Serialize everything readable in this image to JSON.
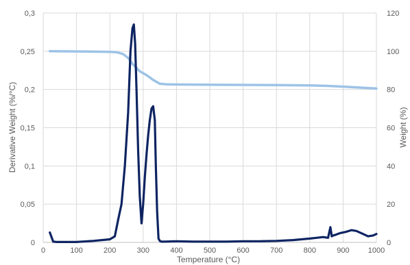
{
  "chart_data": {
    "type": "line",
    "title": "",
    "xlabel": "Temperature (°C)",
    "ylabel_left": "Derivative  Weight (%/°C)",
    "ylabel_right": "Weight  (%)",
    "xlim": [
      0,
      1000
    ],
    "ylim_left": [
      0,
      0.3
    ],
    "ylim_right": [
      0,
      120
    ],
    "grid": true,
    "legend": "none",
    "x_ticks": [
      0,
      100,
      200,
      300,
      400,
      500,
      600,
      700,
      800,
      900,
      1000
    ],
    "y_left_ticks": [
      "0",
      "0,05",
      "0,1",
      "0,15",
      "0,2",
      "0,25",
      "0,3"
    ],
    "y_left_tick_values": [
      0,
      0.05,
      0.1,
      0.15,
      0.2,
      0.25,
      0.3
    ],
    "y_right_ticks": [
      0,
      20,
      40,
      60,
      80,
      100,
      120
    ],
    "series": [
      {
        "axis": "right",
        "color": "#9DC3E6",
        "x": [
          20,
          100,
          200,
          220,
          240,
          255,
          270,
          290,
          310,
          330,
          350,
          370,
          400,
          500,
          600,
          700,
          800,
          850,
          900,
          950,
          1000
        ],
        "y": [
          100,
          99.9,
          99.7,
          99.5,
          98.5,
          96.5,
          93,
          89.5,
          87.5,
          85,
          83,
          82.7,
          82.6,
          82.5,
          82.4,
          82.3,
          82.1,
          81.9,
          81.5,
          81,
          80.5
        ]
      },
      {
        "axis": "left",
        "color": "#0E2462",
        "x": [
          20,
          30,
          40,
          60,
          100,
          150,
          200,
          215,
          225,
          235,
          245,
          255,
          262,
          268,
          272,
          276,
          280,
          285,
          290,
          295,
          300,
          305,
          310,
          315,
          320,
          325,
          330,
          335,
          338,
          342,
          346,
          350,
          355,
          365,
          400,
          450,
          500,
          550,
          600,
          650,
          700,
          750,
          800,
          820,
          840,
          855,
          862,
          866,
          870,
          878,
          890,
          910,
          925,
          940,
          955,
          965,
          975,
          990,
          1000
        ],
        "y": [
          0.013,
          0.001,
          0.0005,
          0.0005,
          0.0005,
          0.002,
          0.004,
          0.008,
          0.03,
          0.05,
          0.1,
          0.17,
          0.25,
          0.28,
          0.285,
          0.26,
          0.2,
          0.12,
          0.06,
          0.025,
          0.05,
          0.085,
          0.115,
          0.14,
          0.16,
          0.175,
          0.178,
          0.16,
          0.1,
          0.04,
          0.005,
          0.002,
          0.001,
          0.001,
          0.0015,
          0.001,
          0.001,
          0.001,
          0.0015,
          0.0015,
          0.002,
          0.003,
          0.005,
          0.006,
          0.007,
          0.006,
          0.02,
          0.008,
          0.009,
          0.01,
          0.012,
          0.014,
          0.016,
          0.015,
          0.012,
          0.01,
          0.008,
          0.009,
          0.011
        ]
      }
    ]
  }
}
